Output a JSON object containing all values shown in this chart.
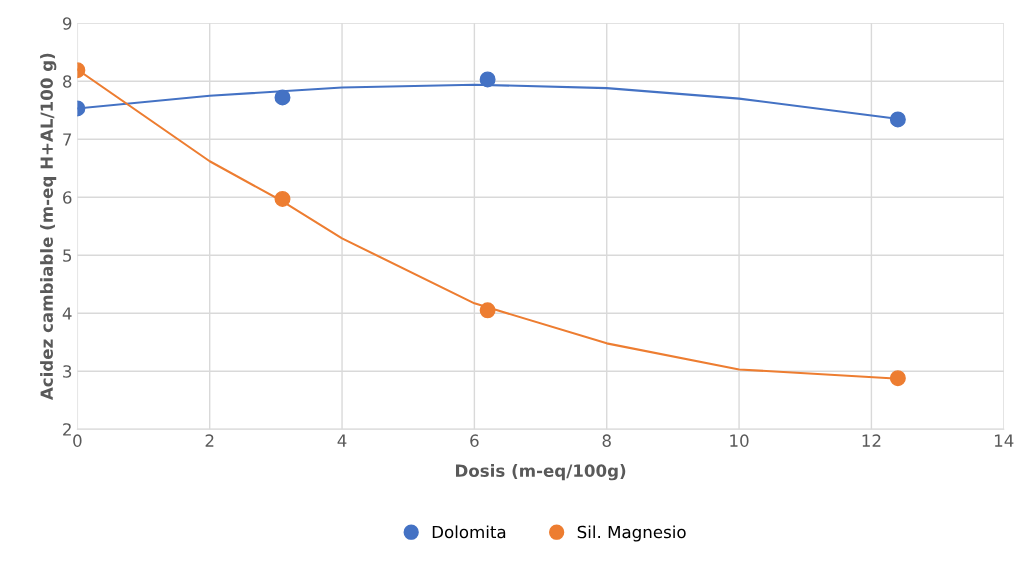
{
  "chart_data": {
    "type": "scatter",
    "xlabel": "Dosis (m-eq/100g)",
    "ylabel": "Acidez cambiable (m-eq H+AL/100 g)",
    "x": [
      0,
      3.1,
      6.2,
      12.4
    ],
    "series": [
      {
        "name": "Dolomita",
        "color": "#4472c4",
        "marker": "circle",
        "values": [
          7.53,
          7.72,
          8.03,
          7.34
        ]
      },
      {
        "name": "Sil. Magnesio",
        "color": "#ed7d31",
        "marker": "circle",
        "values": [
          8.19,
          5.97,
          4.05,
          2.88
        ]
      },
      {
        "type": "line",
        "color": "#4472c4",
        "marker": "none",
        "x": [
          0,
          2,
          4,
          6,
          8,
          10,
          12.4
        ],
        "values": [
          7.53,
          7.75,
          7.89,
          7.94,
          7.88,
          7.7,
          7.35
        ]
      },
      {
        "type": "line",
        "color": "#ed7d31",
        "marker": "none",
        "x": [
          0,
          2,
          3.1,
          4,
          6,
          8,
          10,
          12.4
        ],
        "values": [
          8.2,
          6.62,
          5.93,
          5.29,
          4.17,
          3.48,
          3.03,
          2.87
        ]
      }
    ],
    "xlim": [
      0,
      14
    ],
    "xticks": [
      0,
      2,
      4,
      6,
      8,
      10,
      12,
      14
    ],
    "ylim": [
      2,
      9
    ],
    "yticks": [
      2,
      3,
      4,
      5,
      6,
      7,
      8,
      9
    ],
    "grid": true,
    "legend": "bottom",
    "line_style": "solid"
  }
}
